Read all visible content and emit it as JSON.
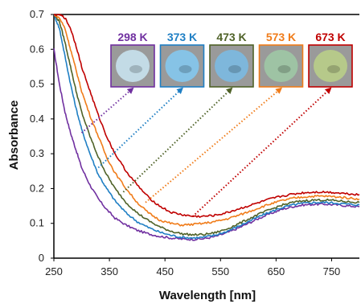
{
  "chart_data": {
    "type": "line",
    "xlabel": "Wavelength [nm]",
    "ylabel": "Absorbance",
    "xlim": [
      250,
      800
    ],
    "ylim": [
      0,
      0.7
    ],
    "xticks": [
      250,
      350,
      450,
      550,
      650,
      750
    ],
    "yticks": [
      0,
      0.1,
      0.2,
      0.3,
      0.4,
      0.5,
      0.6,
      0.7
    ],
    "grid": false,
    "series": [
      {
        "name": "298 K",
        "color": "#7030a0",
        "x": [
          250,
          260,
          270,
          280,
          290,
          300,
          315,
          330,
          345,
          360,
          380,
          400,
          420,
          440,
          460,
          480,
          500,
          520,
          540,
          560,
          580,
          600,
          620,
          640,
          660,
          680,
          700,
          720,
          740,
          760,
          780,
          800
        ],
        "y": [
          0.6,
          0.5,
          0.42,
          0.36,
          0.31,
          0.26,
          0.21,
          0.17,
          0.14,
          0.115,
          0.095,
          0.08,
          0.07,
          0.063,
          0.058,
          0.055,
          0.054,
          0.056,
          0.062,
          0.072,
          0.085,
          0.1,
          0.115,
          0.128,
          0.14,
          0.148,
          0.153,
          0.155,
          0.155,
          0.153,
          0.15,
          0.148
        ]
      },
      {
        "name": "373 K",
        "color": "#1f7fc4",
        "x": [
          250,
          260,
          270,
          280,
          290,
          300,
          315,
          330,
          345,
          360,
          380,
          400,
          420,
          440,
          460,
          480,
          500,
          520,
          540,
          560,
          580,
          600,
          620,
          640,
          660,
          680,
          700,
          720,
          740,
          760,
          780,
          800
        ],
        "y": [
          0.7,
          0.66,
          0.58,
          0.5,
          0.43,
          0.37,
          0.3,
          0.24,
          0.2,
          0.165,
          0.13,
          0.105,
          0.088,
          0.075,
          0.066,
          0.06,
          0.058,
          0.06,
          0.066,
          0.076,
          0.09,
          0.105,
          0.12,
          0.133,
          0.145,
          0.153,
          0.158,
          0.16,
          0.16,
          0.158,
          0.155,
          0.153
        ]
      },
      {
        "name": "473 K",
        "color": "#4f6228",
        "x": [
          250,
          260,
          270,
          280,
          290,
          300,
          315,
          330,
          345,
          360,
          380,
          400,
          420,
          440,
          460,
          480,
          500,
          520,
          540,
          560,
          580,
          600,
          620,
          640,
          660,
          680,
          700,
          720,
          740,
          760,
          780,
          800
        ],
        "y": [
          0.7,
          0.68,
          0.62,
          0.55,
          0.48,
          0.42,
          0.35,
          0.29,
          0.24,
          0.2,
          0.16,
          0.13,
          0.108,
          0.09,
          0.078,
          0.07,
          0.067,
          0.068,
          0.073,
          0.083,
          0.097,
          0.112,
          0.127,
          0.14,
          0.152,
          0.16,
          0.165,
          0.167,
          0.167,
          0.165,
          0.162,
          0.16
        ]
      },
      {
        "name": "573 K",
        "color": "#f07c1a",
        "x": [
          250,
          260,
          270,
          280,
          290,
          300,
          315,
          330,
          345,
          360,
          380,
          400,
          420,
          440,
          460,
          480,
          500,
          520,
          540,
          560,
          580,
          600,
          620,
          640,
          660,
          680,
          700,
          720,
          740,
          760,
          780,
          800
        ],
        "y": [
          0.7,
          0.69,
          0.66,
          0.6,
          0.54,
          0.48,
          0.41,
          0.35,
          0.29,
          0.245,
          0.2,
          0.16,
          0.13,
          0.11,
          0.1,
          0.095,
          0.097,
          0.1,
          0.105,
          0.112,
          0.122,
          0.133,
          0.145,
          0.156,
          0.165,
          0.172,
          0.176,
          0.178,
          0.178,
          0.176,
          0.173,
          0.17
        ]
      },
      {
        "name": "673 K",
        "color": "#c00000",
        "x": [
          250,
          260,
          270,
          280,
          290,
          300,
          315,
          330,
          345,
          360,
          380,
          400,
          420,
          440,
          460,
          480,
          500,
          520,
          540,
          560,
          580,
          600,
          620,
          640,
          660,
          680,
          700,
          720,
          740,
          760,
          780,
          800
        ],
        "y": [
          0.7,
          0.7,
          0.69,
          0.66,
          0.61,
          0.55,
          0.48,
          0.41,
          0.35,
          0.3,
          0.25,
          0.21,
          0.175,
          0.15,
          0.132,
          0.125,
          0.12,
          0.12,
          0.123,
          0.13,
          0.14,
          0.15,
          0.16,
          0.17,
          0.178,
          0.184,
          0.188,
          0.19,
          0.19,
          0.188,
          0.185,
          0.183
        ]
      }
    ],
    "annotations": [
      {
        "label": "298 K",
        "color": "#7030a0",
        "swatch_color": "#c3dbe6",
        "x": 300,
        "y": 0.36
      },
      {
        "label": "373 K",
        "color": "#1f7fc4",
        "swatch_color": "#86c3e6",
        "x": 330,
        "y": 0.26
      },
      {
        "label": "473 K",
        "color": "#4f6228",
        "swatch_color": "#7eb7db",
        "x": 375,
        "y": 0.19
      },
      {
        "label": "573 K",
        "color": "#f07c1a",
        "swatch_color": "#9ec3a4",
        "x": 415,
        "y": 0.16
      },
      {
        "label": "673 K",
        "color": "#c00000",
        "swatch_color": "#b6c98a",
        "x": 500,
        "y": 0.12
      }
    ]
  }
}
